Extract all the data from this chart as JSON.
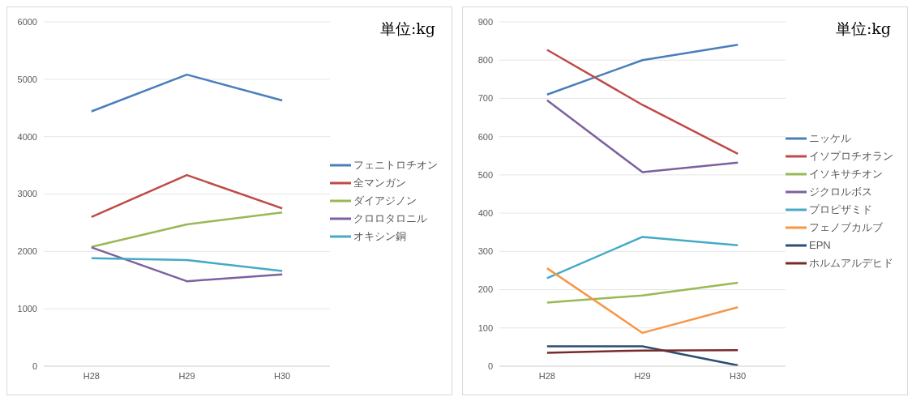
{
  "chart_data": [
    {
      "type": "line",
      "annotations": [
        "単位:kg"
      ],
      "categories": [
        "H28",
        "H29",
        "H30"
      ],
      "ylim": [
        0,
        6000
      ],
      "yticks": [
        0,
        1000,
        2000,
        3000,
        4000,
        5000,
        6000
      ],
      "grid": "y",
      "legend": "right",
      "marker": "none",
      "series": [
        {
          "name": "フェニトロチオン",
          "color": "#4a7ebb",
          "values": [
            4440,
            5080,
            4630
          ]
        },
        {
          "name": "全マンガン",
          "color": "#be4b48",
          "values": [
            2600,
            3330,
            2750
          ]
        },
        {
          "name": "ダイアジノン",
          "color": "#98b954",
          "values": [
            2080,
            2470,
            2680
          ]
        },
        {
          "name": "クロロタロニル",
          "color": "#7d60a0",
          "values": [
            2070,
            1480,
            1600
          ]
        },
        {
          "name": "オキシン銅",
          "color": "#46aac5",
          "values": [
            1880,
            1850,
            1660
          ]
        }
      ]
    },
    {
      "type": "line",
      "annotations": [
        "単位:kg"
      ],
      "categories": [
        "H28",
        "H29",
        "H30"
      ],
      "ylim": [
        0,
        900
      ],
      "yticks": [
        0,
        100,
        200,
        300,
        400,
        500,
        600,
        700,
        800,
        900
      ],
      "grid": "y",
      "legend": "right",
      "marker": "none",
      "series": [
        {
          "name": "ニッケル",
          "color": "#4a7ebb",
          "values": [
            710,
            800,
            840
          ]
        },
        {
          "name": "イソプロチオラン",
          "color": "#be4b48",
          "values": [
            827,
            683,
            555
          ]
        },
        {
          "name": "イソキサチオン",
          "color": "#98b954",
          "values": [
            166,
            185,
            218
          ]
        },
        {
          "name": "ジクロルボス",
          "color": "#7d60a0",
          "values": [
            695,
            507,
            532
          ]
        },
        {
          "name": "プロピザミド",
          "color": "#46aac5",
          "values": [
            230,
            338,
            316
          ]
        },
        {
          "name": "フェノブカルブ",
          "color": "#f79646",
          "values": [
            256,
            87,
            154
          ]
        },
        {
          "name": "EPN",
          "color": "#2c4d75",
          "values": [
            52,
            52,
            2
          ]
        },
        {
          "name": "ホルムアルデヒド",
          "color": "#772c2a",
          "values": [
            35,
            41,
            42
          ]
        }
      ]
    }
  ]
}
